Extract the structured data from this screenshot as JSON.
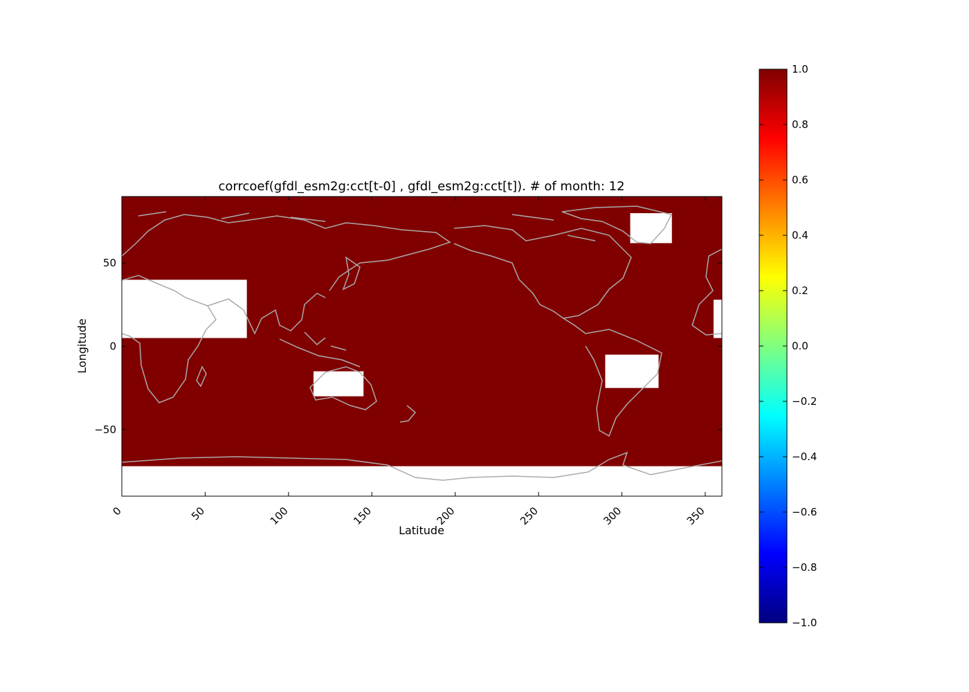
{
  "chart_data": {
    "type": "heatmap",
    "title": "corrcoef(gfdl_esm2g:cct[t-0] , gfdl_esm2g:cct[t]). # of month: 12",
    "xlabel": "Latitude",
    "ylabel": "Longitude",
    "xlim": [
      0,
      360
    ],
    "ylim": [
      -90,
      90
    ],
    "xticks": [
      0,
      50,
      100,
      150,
      200,
      250,
      300,
      350
    ],
    "yticks": [
      50,
      0,
      -50
    ],
    "fill_value": 1.0,
    "fill_color": "#800000",
    "missing_color": "#ffffff",
    "coastline_color": "#aaaaaa",
    "missing_regions": [
      {
        "name": "sahara-arabia",
        "lon": [
          0,
          75
        ],
        "lat": [
          5,
          40
        ]
      },
      {
        "name": "sahara-east-edge",
        "lon": [
          355,
          360
        ],
        "lat": [
          5,
          28
        ]
      },
      {
        "name": "south-america-interior",
        "lon": [
          290,
          322
        ],
        "lat": [
          -25,
          -5
        ]
      },
      {
        "name": "australia-interior",
        "lon": [
          115,
          145
        ],
        "lat": [
          -30,
          -15
        ]
      },
      {
        "name": "greenland",
        "lon": [
          305,
          330
        ],
        "lat": [
          62,
          80
        ]
      },
      {
        "name": "antarctica",
        "lon": [
          0,
          360
        ],
        "lat": [
          -90,
          -72
        ]
      }
    ],
    "colorbar": {
      "colormap": "jet",
      "vmin": -1.0,
      "vmax": 1.0,
      "ticks": [
        "1.0",
        "0.8",
        "0.6",
        "0.4",
        "0.2",
        "0.0",
        "−0.2",
        "−0.4",
        "−0.6",
        "−0.8",
        "−1.0"
      ],
      "stops": [
        "#800000",
        "#ff0000",
        "#ff8000",
        "#ffff00",
        "#80ff80",
        "#00ffff",
        "#0080ff",
        "#0000ff",
        "#000080"
      ]
    }
  }
}
